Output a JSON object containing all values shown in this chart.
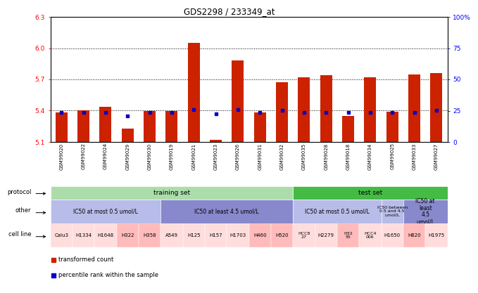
{
  "title": "GDS2298 / 233349_at",
  "samples": [
    "GSM99020",
    "GSM99022",
    "GSM99024",
    "GSM99029",
    "GSM99030",
    "GSM99019",
    "GSM99021",
    "GSM99023",
    "GSM99026",
    "GSM99031",
    "GSM99032",
    "GSM99035",
    "GSM99028",
    "GSM99018",
    "GSM99034",
    "GSM99025",
    "GSM99033",
    "GSM99027"
  ],
  "bar_values": [
    5.385,
    5.405,
    5.435,
    5.23,
    5.395,
    5.395,
    6.05,
    5.12,
    5.88,
    5.385,
    5.675,
    5.72,
    5.74,
    5.35,
    5.72,
    5.39,
    5.75,
    5.76
  ],
  "percentile_values": [
    5.385,
    5.385,
    5.385,
    5.35,
    5.385,
    5.385,
    5.41,
    5.37,
    5.41,
    5.385,
    5.405,
    5.385,
    5.385,
    5.385,
    5.385,
    5.385,
    5.385,
    5.4
  ],
  "ylim_left": [
    5.1,
    6.3
  ],
  "ylim_right": [
    0,
    100
  ],
  "yticks_left": [
    5.1,
    5.4,
    5.7,
    6.0,
    6.3
  ],
  "yticks_right": [
    0,
    25,
    50,
    75,
    100
  ],
  "ytick_right_labels": [
    "0",
    "25",
    "50",
    "75",
    "100%"
  ],
  "bar_color": "#cc2200",
  "percentile_color": "#0000cc",
  "protocol_training_color": "#aaddaa",
  "protocol_test_color": "#44bb44",
  "protocol_training_label": "training set",
  "protocol_test_label": "test set",
  "training_count": 11,
  "test_count": 7,
  "other_segs": [
    {
      "label": "IC50 at most 0.5 umol/L",
      "count": 5,
      "color": "#b8bce8"
    },
    {
      "label": "IC50 at least 4.5 umol/L",
      "count": 6,
      "color": "#8888cc"
    },
    {
      "label": "IC50 at most 0.5 umol/L",
      "count": 4,
      "color": "#b8bce8"
    },
    {
      "label": "IC50 between\n0.5 and 4.5\numol/L",
      "count": 1,
      "color": "#b8bce8"
    },
    {
      "label": "IC50 at\nleast\n4.5\numol/L",
      "count": 2,
      "color": "#8888cc"
    }
  ],
  "cells": [
    {
      "label": "Calu3",
      "color": "#ffdddd"
    },
    {
      "label": "H1334",
      "color": "#ffdddd"
    },
    {
      "label": "H1648",
      "color": "#ffdddd"
    },
    {
      "label": "H322",
      "color": "#ffbbbb"
    },
    {
      "label": "H358",
      "color": "#ffbbbb"
    },
    {
      "label": "A549",
      "color": "#ffdddd"
    },
    {
      "label": "H125",
      "color": "#ffdddd"
    },
    {
      "label": "H157",
      "color": "#ffdddd"
    },
    {
      "label": "H1703",
      "color": "#ffdddd"
    },
    {
      "label": "H460",
      "color": "#ffbbbb"
    },
    {
      "label": "H520",
      "color": "#ffbbbb"
    },
    {
      "label": "HCC8\n27",
      "color": "#ffdddd"
    },
    {
      "label": "H2279",
      "color": "#ffdddd"
    },
    {
      "label": "H32\n55",
      "color": "#ffbbbb"
    },
    {
      "label": "HCC4\n006",
      "color": "#ffdddd"
    },
    {
      "label": "H1650",
      "color": "#ffdddd"
    },
    {
      "label": "H820",
      "color": "#ffbbbb"
    },
    {
      "label": "H1975",
      "color": "#ffdddd"
    }
  ],
  "legend_items": [
    {
      "label": "transformed count",
      "color": "#cc2200"
    },
    {
      "label": "percentile rank within the sample",
      "color": "#0000cc"
    }
  ]
}
